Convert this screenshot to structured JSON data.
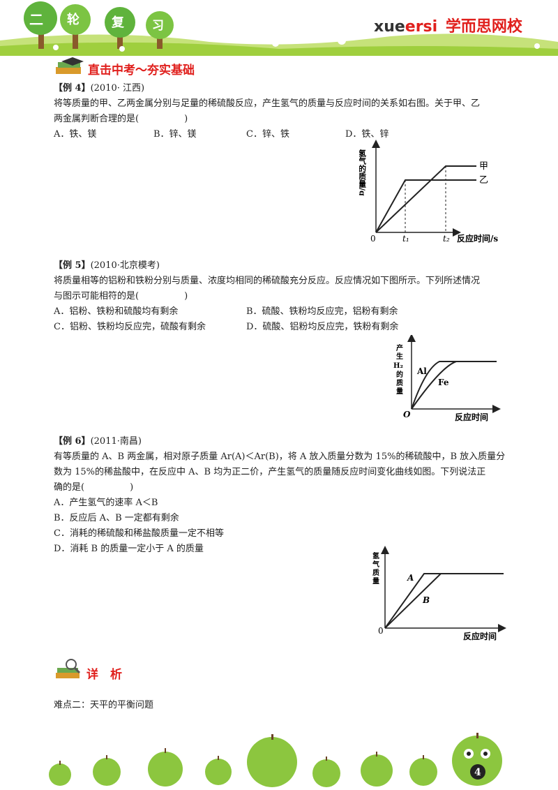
{
  "header": {
    "banner_chars": [
      "二",
      "轮",
      "复",
      "习"
    ],
    "brand_latin_a": "xue",
    "brand_latin_b": "ersi",
    "brand_cn": "学而思网校"
  },
  "section1": {
    "title": "直击中考～夯实基础"
  },
  "ex4": {
    "label": "【例 4】",
    "source": "(2010· 江西)",
    "line1": "将等质量的甲、乙两金属分别与足量的稀硫酸反应，产生氢气的质量与反应时间的关系如右图。关于甲、乙",
    "line2": "两金属判断合理的是(　　　　　)",
    "options": [
      "A．铁、镁",
      "B．锌、镁",
      "C．锌、铁",
      "D．铁、锌"
    ],
    "chart": {
      "ylabel": "氢气的质量/g",
      "xlabel": "反应时间/s",
      "origin": "0",
      "t1": "t₁",
      "t2": "t₂",
      "series_a": "甲",
      "series_b": "乙"
    }
  },
  "ex5": {
    "label": "【例 5】",
    "source": "(2010·北京模考)",
    "line1": "将质量相等的铝粉和铁粉分别与质量、浓度均相同的稀硫酸充分反应。反应情况如下图所示。下列所述情况",
    "line2": "与图示可能相符的是(　　　　　)",
    "options": [
      "A．铝粉、铁粉和硫酸均有剩余",
      "B．硫酸、铁粉均反应完，铝粉有剩余",
      "C．铝粉、铁粉均反应完，硫酸有剩余",
      "D．硫酸、铝粉均反应完，铁粉有剩余"
    ],
    "chart": {
      "ylabel": [
        "产",
        "生",
        "H₂",
        "的",
        "质",
        "量"
      ],
      "xlabel": "反应时间",
      "origin": "O",
      "series_a": "Al",
      "series_b": "Fe"
    }
  },
  "ex6": {
    "label": "【例 6】",
    "source": "(2011·南昌)",
    "line1": "有等质量的 A、B 两金属，相对原子质量 Ar(A)＜Ar(B)，将 A 放入质量分数为 15%的稀硫酸中，B 放入质量分",
    "line2": "数为 15%的稀盐酸中，在反应中 A、B 均为正二价，产生氢气的质量随反应时间变化曲线如图。下列说法正",
    "line3": "确的是(　　　　　)",
    "options": [
      "A．产生氢气的速率 A＜B",
      "B．反应后 A、B 一定都有剩余",
      "C．消耗的稀硫酸和稀盐酸质量一定不相等",
      "D．消耗 B 的质量一定小于 A 的质量"
    ],
    "chart": {
      "ylabel": [
        "氢",
        "气",
        "质",
        "量"
      ],
      "xlabel": "反应时间",
      "origin": "0",
      "series_a": "A",
      "series_b": "B"
    }
  },
  "section2": {
    "title": "详　析"
  },
  "footer_text": "难点二：天平的平衡问题",
  "page_number": "4"
}
